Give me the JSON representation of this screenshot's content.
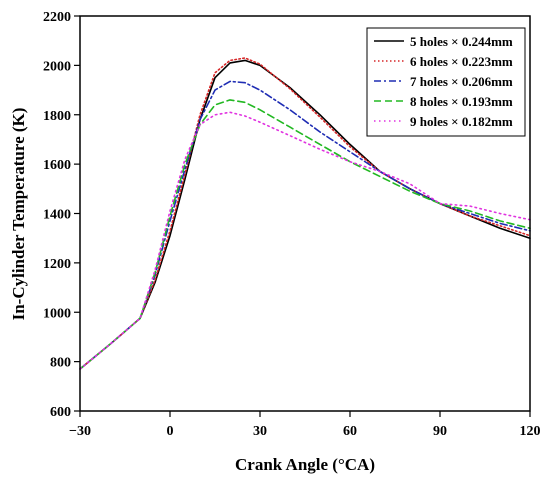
{
  "colors": {
    "series": [
      "#000000",
      "#d62728",
      "#1f2db4",
      "#22b822",
      "#e033e0"
    ]
  },
  "chart_data": {
    "type": "line",
    "title": "",
    "xlabel": "Crank Angle (°CA)",
    "ylabel": "In-Cylinder Temperature (K)",
    "xlim": [
      -30,
      120
    ],
    "ylim": [
      600,
      2200
    ],
    "xticks": [
      -30,
      0,
      30,
      60,
      90,
      120
    ],
    "xtick_labels": [
      "−30",
      "0",
      "30",
      "60",
      "90",
      "120"
    ],
    "yticks": [
      600,
      800,
      1000,
      1200,
      1400,
      1600,
      1800,
      2000,
      2200
    ],
    "ytick_labels": [
      "600",
      "800",
      "1000",
      "1200",
      "1400",
      "1600",
      "1800",
      "2000",
      "2200"
    ],
    "grid": false,
    "legend_position": "top-right",
    "x": [
      -30,
      -20,
      -10,
      -5,
      0,
      5,
      10,
      15,
      20,
      25,
      30,
      40,
      50,
      60,
      70,
      80,
      90,
      100,
      110,
      120
    ],
    "series": [
      {
        "name": "5 holes × 0.244mm",
        "style": "solid",
        "values": [
          770,
          870,
          975,
          1120,
          1310,
          1540,
          1780,
          1950,
          2010,
          2020,
          2000,
          1910,
          1800,
          1680,
          1570,
          1500,
          1440,
          1390,
          1340,
          1300
        ]
      },
      {
        "name": "6 holes × 0.223mm",
        "style": "dotted",
        "values": [
          770,
          870,
          975,
          1130,
          1330,
          1560,
          1800,
          1970,
          2020,
          2030,
          2005,
          1905,
          1790,
          1670,
          1570,
          1500,
          1440,
          1390,
          1350,
          1310
        ]
      },
      {
        "name": "7 holes × 0.206mm",
        "style": "dashdot",
        "values": [
          770,
          870,
          975,
          1150,
          1370,
          1580,
          1780,
          1900,
          1935,
          1930,
          1900,
          1820,
          1730,
          1650,
          1570,
          1500,
          1440,
          1400,
          1360,
          1330
        ]
      },
      {
        "name": "8 holes × 0.193mm",
        "style": "dashed",
        "values": [
          770,
          870,
          975,
          1160,
          1390,
          1600,
          1760,
          1840,
          1860,
          1850,
          1820,
          1750,
          1680,
          1610,
          1550,
          1490,
          1440,
          1410,
          1370,
          1340
        ]
      },
      {
        "name": "9 holes × 0.182mm",
        "style": "shortdot",
        "values": [
          770,
          870,
          975,
          1170,
          1410,
          1620,
          1760,
          1800,
          1810,
          1795,
          1770,
          1715,
          1660,
          1610,
          1570,
          1520,
          1440,
          1430,
          1400,
          1375
        ]
      }
    ]
  }
}
